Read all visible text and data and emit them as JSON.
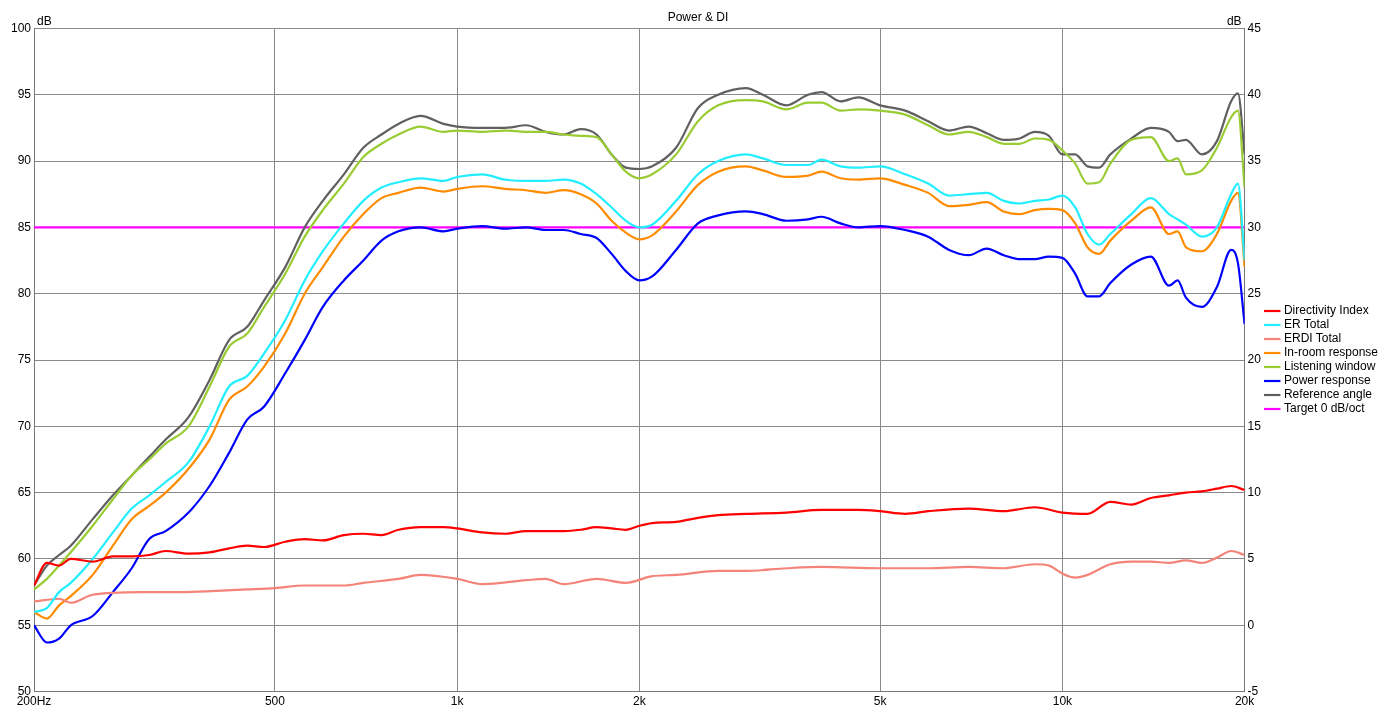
{
  "chart_data": {
    "type": "line",
    "title": "Power & DI",
    "ylabel": "dB",
    "y2label": "dB",
    "x": [
      200,
      210,
      220,
      230,
      250,
      270,
      290,
      310,
      330,
      360,
      390,
      420,
      450,
      480,
      520,
      560,
      600,
      650,
      700,
      750,
      800,
      870,
      950,
      1000,
      1100,
      1200,
      1300,
      1400,
      1500,
      1600,
      1700,
      1800,
      1900,
      2000,
      2100,
      2300,
      2500,
      2700,
      3000,
      3200,
      3500,
      3800,
      4000,
      4300,
      4600,
      5000,
      5500,
      6000,
      6500,
      7000,
      7500,
      8000,
      8500,
      9000,
      9500,
      10000,
      10500,
      11000,
      11500,
      12000,
      13000,
      14000,
      15000,
      15500,
      16000,
      17000,
      18000,
      19000,
      19500,
      20000
    ],
    "xlim": [
      200,
      20000
    ],
    "xticks": [
      {
        "value": 200,
        "label": "200Hz"
      },
      500,
      {
        "value": 1000,
        "label": "1k"
      },
      {
        "value": 2000,
        "label": "2k"
      },
      {
        "value": 5000,
        "label": "5k"
      },
      {
        "value": 10000,
        "label": "10k"
      },
      {
        "value": 20000,
        "label": "20k"
      }
    ],
    "ylim": [
      50,
      100
    ],
    "yticks": [
      50,
      55,
      60,
      65,
      70,
      75,
      80,
      85,
      90,
      95,
      100
    ],
    "y2lim": [
      -5,
      45
    ],
    "y2ticks": [
      -5,
      0,
      5,
      10,
      15,
      20,
      25,
      30,
      35,
      40,
      45
    ],
    "log": "x",
    "grid": true,
    "legend": "right",
    "line_style": "solid",
    "series": [
      {
        "name": "Directivity Index",
        "color": "#ff0000",
        "axis": "y2",
        "x": [
          200,
          210,
          220,
          230,
          250,
          270,
          290,
          310,
          330,
          360,
          390,
          420,
          450,
          480,
          520,
          560,
          600,
          650,
          700,
          750,
          800,
          870,
          950,
          1000,
          1100,
          1200,
          1300,
          1400,
          1500,
          1600,
          1700,
          1800,
          1900,
          2000,
          2100,
          2300,
          2500,
          2700,
          3000,
          3500,
          4000,
          4600,
          5000,
          5500,
          6000,
          7000,
          8000,
          9000,
          10000,
          11000,
          12000,
          13000,
          14000,
          15000,
          16000,
          17000,
          18000,
          19000,
          20000
        ],
        "values": [
          3,
          4.7,
          4.5,
          5,
          4.8,
          5.2,
          5.2,
          5.3,
          5.6,
          5.4,
          5.5,
          5.8,
          6,
          5.9,
          6.3,
          6.5,
          6.4,
          6.8,
          6.9,
          6.8,
          7.2,
          7.4,
          7.4,
          7.3,
          7,
          6.9,
          7.1,
          7.1,
          7.1,
          7.2,
          7.4,
          7.3,
          7.2,
          7.5,
          7.7,
          7.8,
          8.1,
          8.3,
          8.4,
          8.5,
          8.7,
          8.7,
          8.6,
          8.4,
          8.6,
          8.8,
          8.6,
          8.9,
          8.5,
          8.4,
          9.3,
          9.1,
          9.6,
          9.8,
          10,
          10.1,
          10.3,
          10.5,
          10.2
        ]
      },
      {
        "name": "ER Total",
        "color": "#22eeff",
        "values": [
          56,
          56.3,
          57.5,
          58.2,
          60,
          62,
          63.8,
          64.8,
          65.8,
          67.3,
          70,
          73,
          73.8,
          75.5,
          78,
          81,
          83.2,
          85.3,
          87,
          88,
          88.4,
          88.7,
          88.5,
          88.8,
          89,
          88.6,
          88.5,
          88.5,
          88.6,
          88.3,
          87.5,
          86.5,
          85.5,
          85,
          85.2,
          87,
          89,
          90,
          90.5,
          90.2,
          89.7,
          89.7,
          90.1,
          89.6,
          89.5,
          89.6,
          89,
          88.3,
          87.4,
          87.5,
          87.6,
          87,
          86.8,
          87,
          87.1,
          87.4,
          86.5,
          84.5,
          83.7,
          84.5,
          86,
          87.2,
          86,
          85.6,
          85.2,
          84.3,
          85,
          87.5,
          88.3,
          82.5
        ]
      },
      {
        "name": "ERDI Total",
        "color": "#f4847a",
        "axis": "y2",
        "x": [
          200,
          220,
          230,
          250,
          300,
          350,
          400,
          450,
          500,
          560,
          650,
          700,
          800,
          870,
          1000,
          1100,
          1300,
          1400,
          1500,
          1700,
          1900,
          2100,
          2300,
          2700,
          3000,
          3500,
          4000,
          5000,
          6000,
          7000,
          8000,
          9000,
          9500,
          10000,
          10500,
          11000,
          12000,
          13000,
          14000,
          15000,
          16000,
          17000,
          18000,
          19000,
          20000
        ],
        "values": [
          1.8,
          2,
          1.7,
          2.3,
          2.5,
          2.5,
          2.6,
          2.7,
          2.8,
          3,
          3,
          3.2,
          3.5,
          3.8,
          3.5,
          3.1,
          3.4,
          3.5,
          3.1,
          3.5,
          3.2,
          3.7,
          3.8,
          4.1,
          4.1,
          4.3,
          4.4,
          4.3,
          4.3,
          4.4,
          4.3,
          4.6,
          4.5,
          3.9,
          3.6,
          3.8,
          4.6,
          4.8,
          4.8,
          4.7,
          4.9,
          4.7,
          5.1,
          5.6,
          5.3
        ]
      },
      {
        "name": "In-room response",
        "color": "#ff8c00",
        "values": [
          56,
          55.5,
          56.5,
          57.2,
          58.8,
          61,
          63,
          64,
          65,
          66.8,
          69,
          72,
          73,
          74.5,
          77,
          80,
          82,
          84.3,
          86,
          87.2,
          87.6,
          88,
          87.7,
          87.9,
          88.1,
          87.9,
          87.8,
          87.6,
          87.8,
          87.5,
          86.8,
          85.5,
          84.6,
          84.1,
          84.4,
          86.2,
          88.2,
          89.2,
          89.6,
          89.3,
          88.8,
          88.9,
          89.2,
          88.7,
          88.6,
          88.7,
          88.2,
          87.6,
          86.6,
          86.7,
          86.9,
          86.2,
          86,
          86.3,
          86.4,
          86.3,
          85.3,
          83.5,
          83,
          84,
          85.5,
          86.5,
          84.5,
          84.7,
          83.5,
          83.2,
          84.5,
          87,
          87.6,
          82
        ]
      },
      {
        "name": "Listening window",
        "color": "#99cc33",
        "values": [
          57.7,
          58.5,
          59.5,
          60.5,
          62.5,
          64.5,
          66.3,
          67.5,
          68.7,
          70,
          73,
          76,
          77,
          79,
          81.5,
          84.3,
          86.3,
          88.3,
          90.3,
          91.3,
          92,
          92.6,
          92.2,
          92.3,
          92.2,
          92.3,
          92.2,
          92.2,
          92,
          91.9,
          91.8,
          90.5,
          89.2,
          88.7,
          89,
          90.5,
          93,
          94.2,
          94.6,
          94.5,
          93.9,
          94.4,
          94.4,
          93.8,
          93.9,
          93.8,
          93.5,
          92.7,
          92,
          92.2,
          91.8,
          91.3,
          91.3,
          91.7,
          91.6,
          90.8,
          89.8,
          88.3,
          88.4,
          89.8,
          91.6,
          91.8,
          90,
          90.2,
          89,
          89.3,
          91,
          93.3,
          93.8,
          88
        ]
      },
      {
        "name": "Power response",
        "color": "#0000ff",
        "values": [
          55,
          53.7,
          54,
          55,
          55.7,
          57.5,
          59.3,
          61.5,
          62.1,
          63.5,
          65.5,
          68,
          70.5,
          71.5,
          74,
          76.5,
          79,
          81,
          82.5,
          84,
          84.7,
          85,
          84.7,
          84.9,
          85.1,
          84.9,
          85,
          84.8,
          84.8,
          84.5,
          84.2,
          83,
          81.7,
          81,
          81.3,
          83.3,
          85.3,
          85.9,
          86.2,
          86,
          85.5,
          85.6,
          85.8,
          85.3,
          85,
          85.1,
          84.8,
          84.3,
          83.3,
          82.9,
          83.4,
          82.9,
          82.6,
          82.6,
          82.8,
          82.7,
          81.5,
          79.8,
          79.8,
          80.8,
          82.2,
          82.8,
          80.6,
          81,
          79.7,
          79,
          80.5,
          83.3,
          82.3,
          77.7
        ]
      },
      {
        "name": "Reference angle",
        "color": "#606060",
        "values": [
          58,
          59.5,
          60.3,
          61,
          63,
          64.8,
          66.3,
          67.7,
          69,
          70.7,
          73.5,
          76.5,
          77.5,
          79.5,
          82,
          85,
          87,
          89,
          91,
          92,
          92.8,
          93.4,
          92.8,
          92.6,
          92.5,
          92.5,
          92.7,
          92.2,
          92,
          92.4,
          92,
          90.5,
          89.5,
          89.4,
          89.6,
          91,
          94,
          95,
          95.5,
          95,
          94.2,
          95,
          95.2,
          94.5,
          94.8,
          94.2,
          93.8,
          93,
          92.3,
          92.6,
          92.1,
          91.6,
          91.7,
          92.2,
          91.9,
          90.5,
          90.5,
          89.6,
          89.5,
          90.5,
          91.7,
          92.5,
          92.2,
          91.5,
          91.6,
          90.5,
          91.5,
          94.5,
          95.1,
          90.5
        ]
      },
      {
        "name": "Target 0 dB/oct",
        "color": "#ff00ff",
        "x": [
          200,
          20000
        ],
        "values": [
          85,
          85
        ]
      }
    ]
  }
}
